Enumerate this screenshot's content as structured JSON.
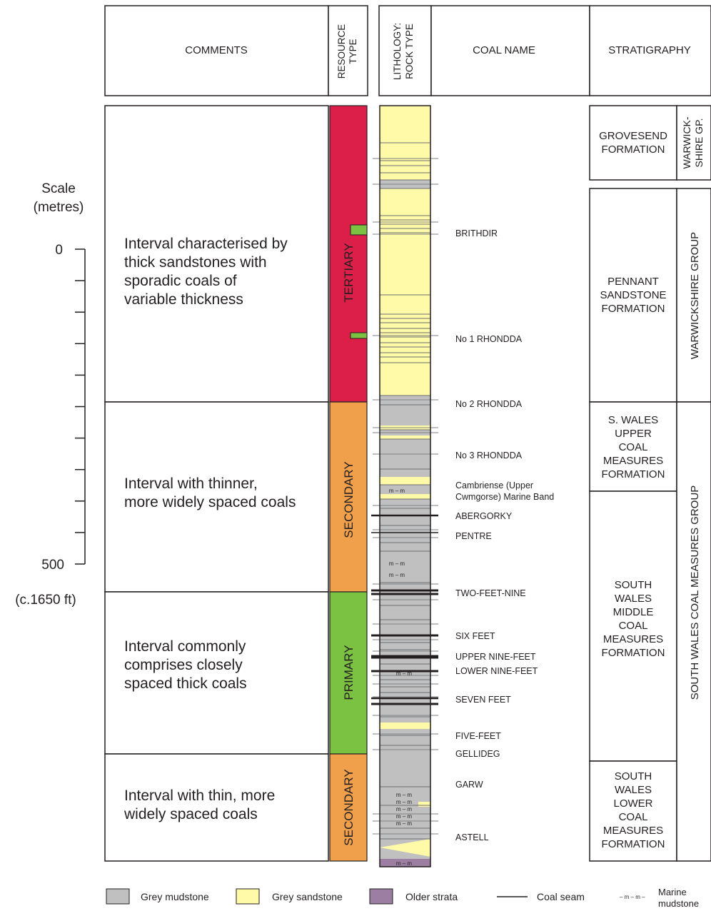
{
  "headers": {
    "comments": "COMMENTS",
    "resource_type": [
      "RESOURCE",
      "TYPE"
    ],
    "lithology": [
      "LITHOLOGY:",
      "ROCK TYPE"
    ],
    "coal_name": "COAL NAME",
    "stratigraphy": "STRATIGRAPHY"
  },
  "scale": {
    "title": [
      "Scale",
      "(metres)"
    ],
    "zero_label": "0",
    "max_label": "500",
    "max_depth_m": 500,
    "tick_interval_m": 50,
    "footnote": "(c.1650 ft)"
  },
  "intervals": [
    {
      "comment": [
        "Interval characterised by",
        "thick sandstones with",
        "sporadic coals of",
        "variable thickness"
      ],
      "resource": "TERTIARY",
      "color": "#dc1f48"
    },
    {
      "comment": [
        "Interval with thinner,",
        "more widely spaced coals"
      ],
      "resource": "SECONDARY",
      "color": "#f0a04b"
    },
    {
      "comment": [
        "Interval commonly",
        "comprises closely",
        "spaced thick coals"
      ],
      "resource": "PRIMARY",
      "color": "#7cc242"
    },
    {
      "comment": [
        "Interval with thin, more",
        "widely spaced coals"
      ],
      "resource": "SECONDARY",
      "color": "#f0a04b"
    }
  ],
  "coal_names": [
    {
      "lines": [
        "BRITHDIR"
      ]
    },
    {
      "lines": [
        "No 1 RHONDDA"
      ]
    },
    {
      "lines": [
        "No 2 RHONDDA"
      ]
    },
    {
      "lines": [
        "No 3 RHONDDA"
      ]
    },
    {
      "lines": [
        "Cambriense (Upper",
        "Cwmgorse) Marine Band"
      ]
    },
    {
      "lines": [
        "ABERGORKY"
      ]
    },
    {
      "lines": [
        "PENTRE"
      ]
    },
    {
      "lines": [
        "TWO-FEET-NINE"
      ]
    },
    {
      "lines": [
        "SIX FEET"
      ]
    },
    {
      "lines": [
        "UPPER NINE-FEET"
      ]
    },
    {
      "lines": [
        "LOWER NINE-FEET"
      ]
    },
    {
      "lines": [
        "SEVEN FEET"
      ]
    },
    {
      "lines": [
        "FIVE-FEET"
      ]
    },
    {
      "lines": [
        "GELLIDEG"
      ]
    },
    {
      "lines": [
        "GARW"
      ]
    },
    {
      "lines": [
        "ASTELL"
      ]
    }
  ],
  "formations": [
    {
      "lines": [
        "GROVESEND",
        "FORMATION"
      ]
    },
    {
      "lines": [
        "PENNANT",
        "SANDSTONE",
        "FORMATION"
      ]
    },
    {
      "lines": [
        "S. WALES",
        "UPPER",
        "COAL",
        "MEASURES",
        "FORMATION"
      ]
    },
    {
      "lines": [
        "SOUTH",
        "WALES",
        "MIDDLE",
        "COAL",
        "MEASURES",
        "FORMATION"
      ]
    },
    {
      "lines": [
        "SOUTH",
        "WALES",
        "LOWER",
        "COAL",
        "MEASURES",
        "FORMATION"
      ]
    }
  ],
  "groups": [
    {
      "lines": [
        "WARWICK-",
        "SHIRE GP."
      ]
    },
    {
      "lines": [
        "WARWICKSHIRE GROUP"
      ]
    },
    {
      "lines": [
        "SOUTH WALES COAL MEASURES GROUP"
      ]
    }
  ],
  "marine_symbol": "m – m",
  "legend": [
    {
      "label": "Grey mudstone",
      "symbol": "box",
      "color": "#c0c0c0"
    },
    {
      "label": "Grey sandstone",
      "symbol": "box",
      "color": "#fffaa8"
    },
    {
      "label": "Older strata",
      "symbol": "box",
      "color": "#9c7ea2"
    },
    {
      "label": "Coal seam",
      "symbol": "line",
      "color": "#231f20"
    },
    {
      "label": [
        "Marine",
        "mudstone"
      ],
      "symbol": "marine",
      "swatch": "– m – m –"
    }
  ],
  "colors": {
    "mudstone": "#c0c0c0",
    "sandstone": "#fffaa8",
    "older_strata": "#9c7ea2",
    "coal_seam": "#231f20",
    "coal_marker": "#7cc242",
    "tertiary": "#dc1f48",
    "secondary": "#f0a04b",
    "primary": "#7cc242"
  }
}
